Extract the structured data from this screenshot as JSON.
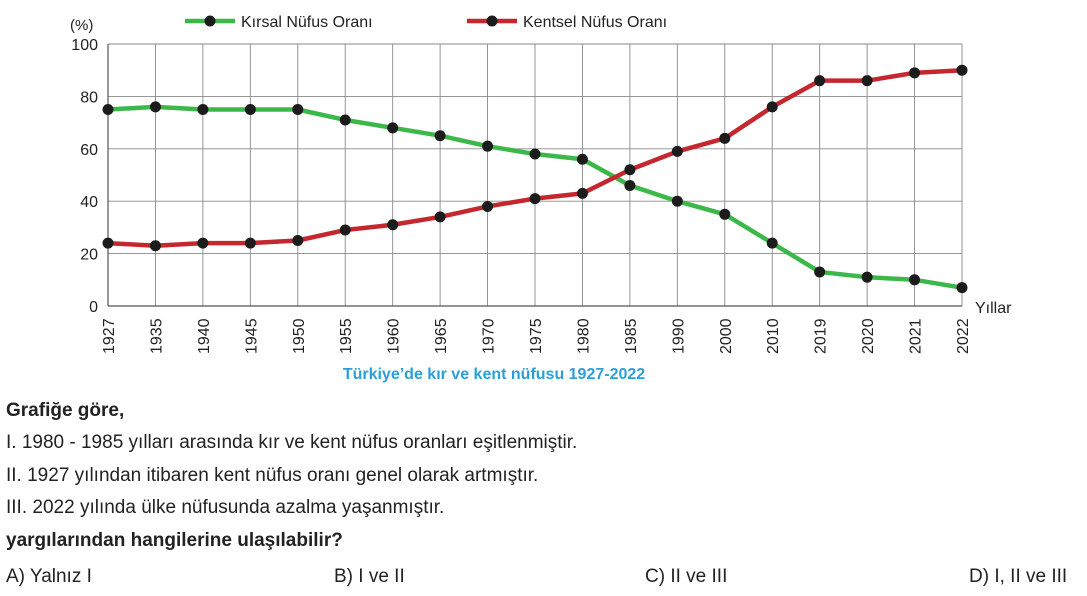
{
  "chart_data": {
    "type": "line",
    "title": "Türkiye’de kır ve kent nüfusu 1927-2022",
    "ylabel": "(%)",
    "xlabel": "Yıllar",
    "ylim": [
      0,
      100
    ],
    "yticks": [
      0,
      20,
      40,
      60,
      80,
      100
    ],
    "grid": true,
    "legend_position": "top",
    "categories": [
      "1927",
      "1935",
      "1940",
      "1945",
      "1950",
      "1955",
      "1960",
      "1965",
      "1970",
      "1975",
      "1980",
      "1985",
      "1990",
      "2000",
      "2010",
      "2019",
      "2020",
      "2021",
      "2022"
    ],
    "series": [
      {
        "name": "Kırsal Nüfus Oranı",
        "color": "#3cb84a",
        "values": [
          75,
          76,
          75,
          75,
          75,
          71,
          68,
          65,
          61,
          58,
          56,
          46,
          40,
          35,
          24,
          13,
          11,
          10,
          7
        ]
      },
      {
        "name": "Kentsel Nüfus Oranı",
        "color": "#c4272e",
        "values": [
          24,
          23,
          24,
          24,
          25,
          29,
          31,
          34,
          38,
          41,
          43,
          52,
          59,
          64,
          76,
          86,
          86,
          89,
          90
        ]
      }
    ]
  },
  "question": {
    "intro": "Grafiğe göre,",
    "statements": [
      "I.   1980 - 1985 yılları arasında kır ve kent nüfus oranları eşitlenmiştir.",
      "II.  1927 yılından itibaren kent nüfus oranı genel olarak artmıştır.",
      "III. 2022 yılında ülke nüfusunda azalma yaşanmıştır."
    ],
    "prompt": "yargılarından hangilerine ulaşılabilir?",
    "options": [
      "A) Yalnız I",
      "B) I ve II",
      "C) II ve III",
      "D) I, II ve III"
    ]
  }
}
